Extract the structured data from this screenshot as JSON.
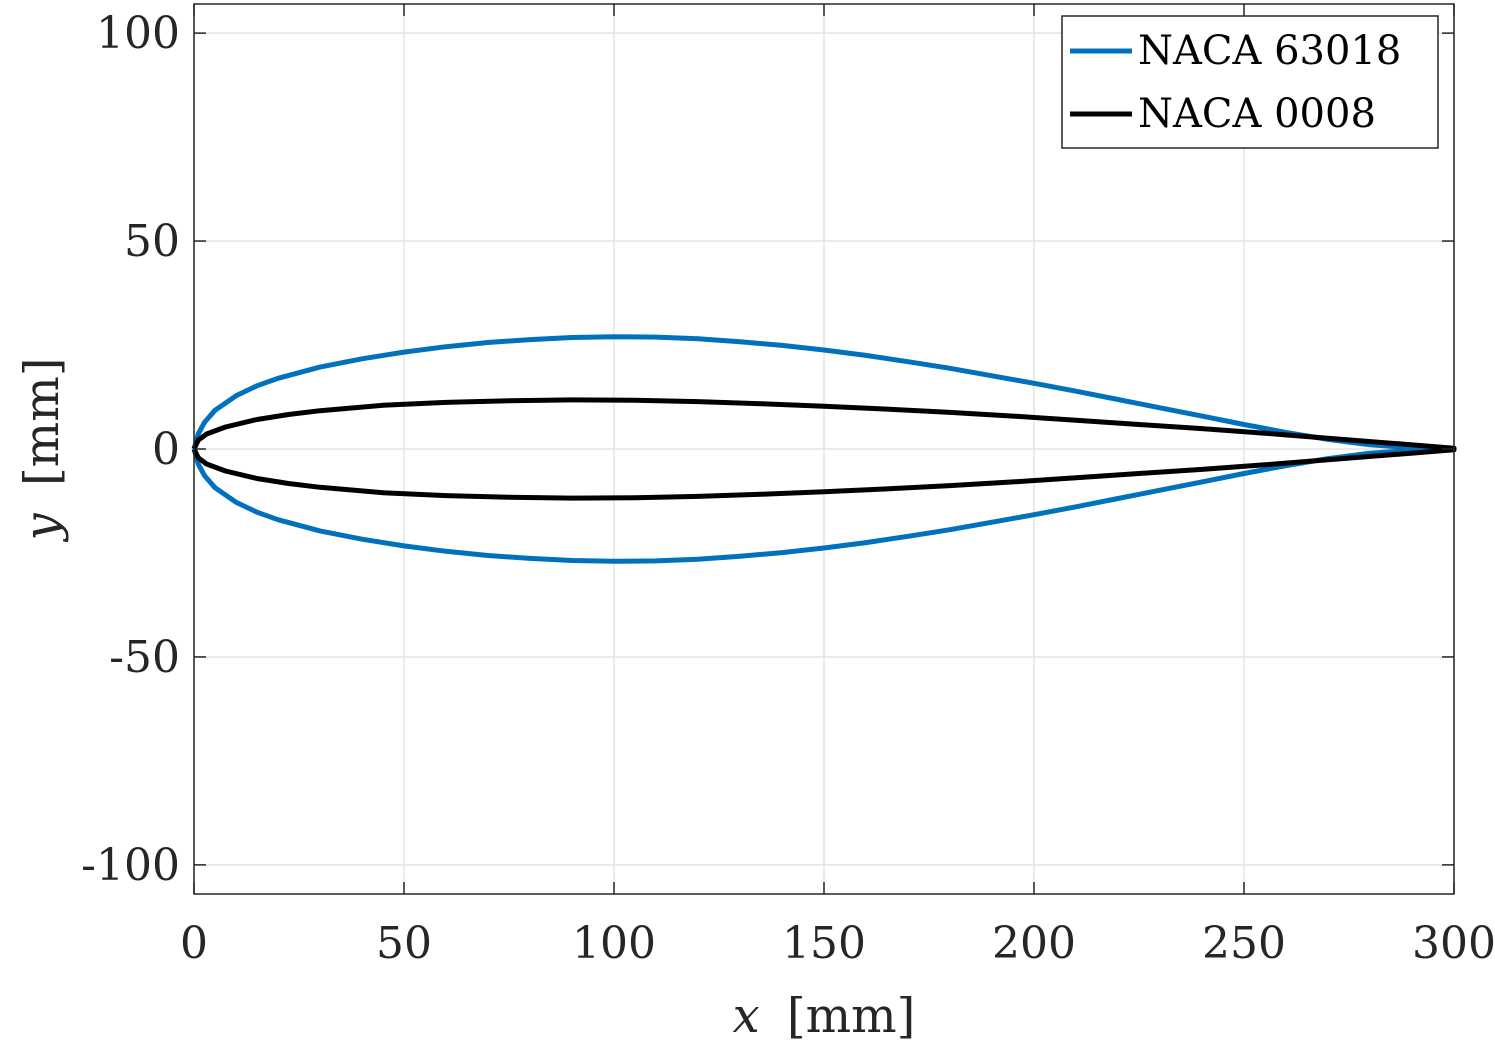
{
  "chart_data": {
    "type": "line",
    "xlabel_var": "x",
    "xlabel_unit": "[mm]",
    "ylabel_var": "y",
    "ylabel_unit": "[mm]",
    "xlim": [
      0,
      300
    ],
    "ylim": [
      -107,
      107
    ],
    "xticks": [
      0,
      50,
      100,
      150,
      200,
      250,
      300
    ],
    "xtick_labels": [
      "0",
      "50",
      "100",
      "150",
      "200",
      "250",
      "300"
    ],
    "yticks": [
      -100,
      -50,
      0,
      50,
      100
    ],
    "ytick_labels": [
      "-100",
      "-50",
      "0",
      "50",
      "100"
    ],
    "grid": true,
    "legend_position": "top-right",
    "series": [
      {
        "name": "NACA 63018",
        "color": "#0072BD",
        "x": [
          0,
          1,
          2.5,
          5,
          10,
          15,
          20,
          30,
          40,
          50,
          60,
          70,
          80,
          90,
          100,
          110,
          120,
          130,
          140,
          150,
          160,
          170,
          180,
          190,
          200,
          210,
          220,
          230,
          240,
          250,
          260,
          270,
          280,
          290,
          300
        ],
        "y": [
          0,
          3.6,
          6.4,
          9.3,
          12.8,
          15.2,
          17.0,
          19.7,
          21.7,
          23.3,
          24.6,
          25.6,
          26.3,
          26.8,
          27.0,
          26.9,
          26.5,
          25.8,
          24.9,
          23.8,
          22.5,
          21.0,
          19.4,
          17.6,
          15.8,
          13.9,
          11.9,
          9.9,
          7.9,
          5.9,
          4.0,
          2.3,
          1.0,
          0.3,
          0
        ]
      },
      {
        "name": "NACA 0008",
        "color": "#000000",
        "x": [
          0,
          1,
          3,
          7.5,
          15,
          22.5,
          30,
          45,
          60,
          75,
          90,
          105,
          120,
          135,
          150,
          165,
          180,
          195,
          210,
          225,
          240,
          255,
          270,
          285,
          300
        ],
        "y": [
          0,
          2.1,
          3.6,
          5.3,
          7.1,
          8.3,
          9.2,
          10.5,
          11.2,
          11.6,
          11.8,
          11.7,
          11.4,
          10.9,
          10.3,
          9.6,
          8.8,
          7.9,
          6.9,
          5.9,
          4.9,
          3.8,
          2.6,
          1.4,
          0.2
        ]
      }
    ]
  }
}
